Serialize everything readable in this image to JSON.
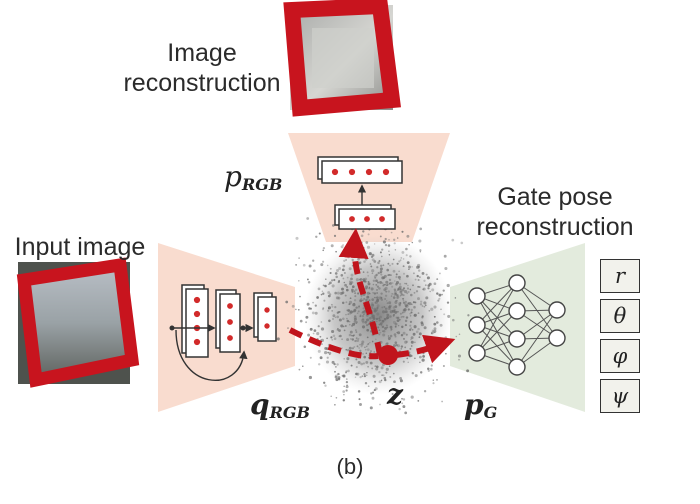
{
  "labels": {
    "image_reconstruction": [
      "Image",
      "reconstruction"
    ],
    "gate_pose_reconstruction": [
      "Gate pose",
      "reconstruction"
    ],
    "input_image": "Input image",
    "caption": "(b)"
  },
  "math": {
    "p_rgb": {
      "base": "p",
      "sub": "RGB"
    },
    "q_rgb": {
      "base": "q",
      "sub": "RGB"
    },
    "p_g": {
      "base": "p",
      "sub": "G"
    },
    "z": "z"
  },
  "pose_outputs": [
    "r",
    "θ",
    "φ",
    "ψ"
  ],
  "colors": {
    "encoder_fill": "#f9dccf",
    "decoder_fill": "#f9dccf",
    "gate_decoder_fill": "#e3ebdd",
    "arrow": "#c0141c",
    "gate_frame": "#c8141e",
    "latent_points": "#6e6e6e"
  }
}
